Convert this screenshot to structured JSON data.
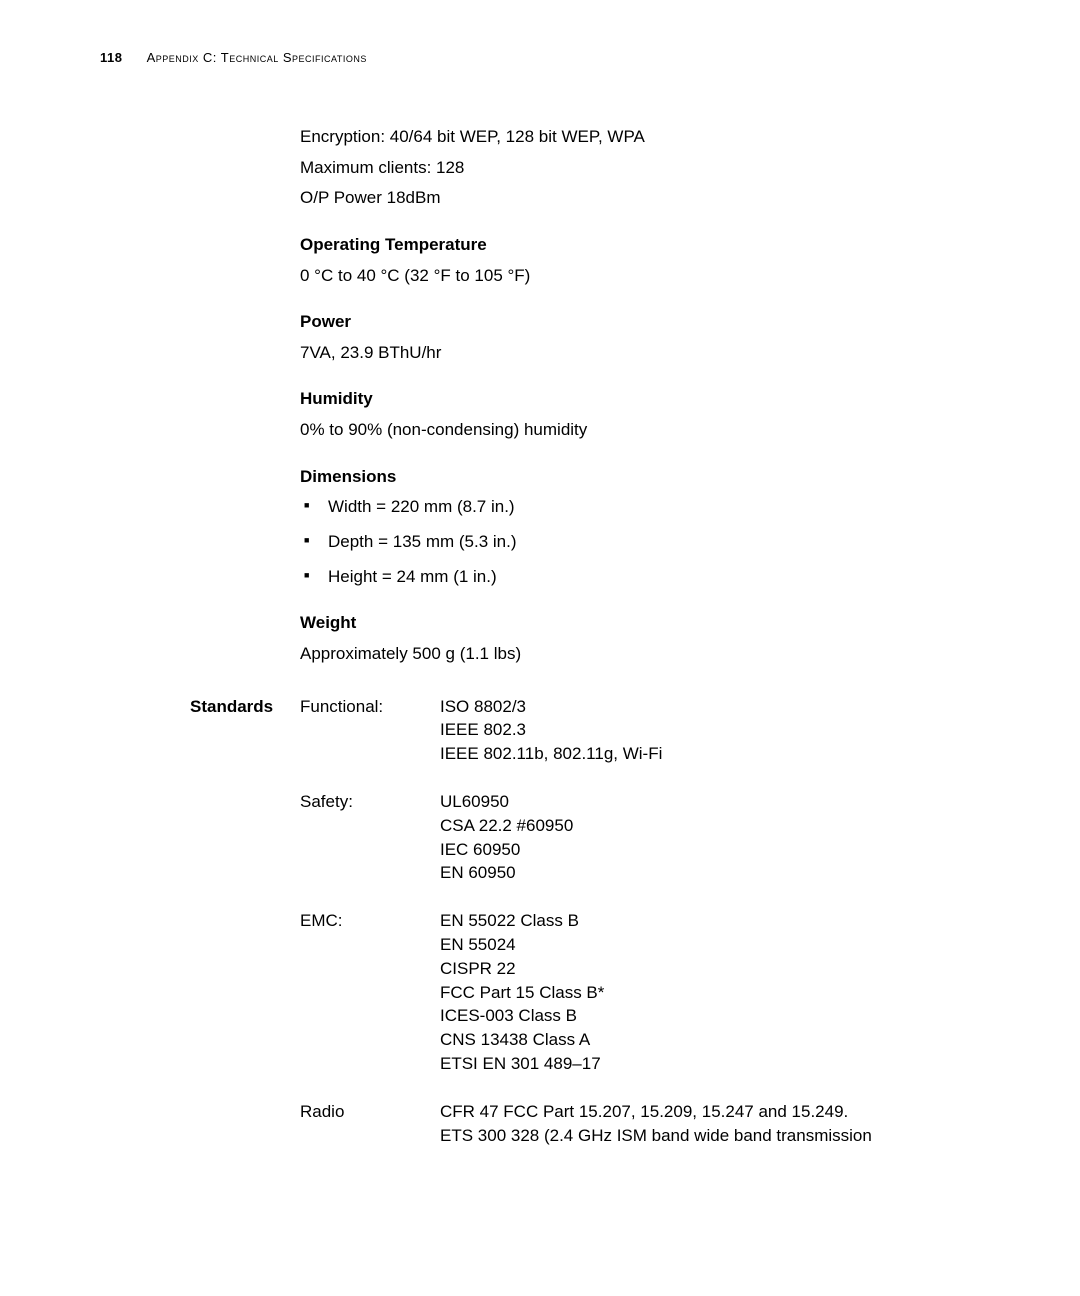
{
  "colors": {
    "text": "#000000",
    "background": "#ffffff"
  },
  "typography": {
    "body_fontsize_pt": 13,
    "header_fontsize_pt": 10,
    "bold_weight": "bold"
  },
  "header": {
    "page_number": "118",
    "title_appendix": "Appendix C: T",
    "title_rest": "echnical Specifications"
  },
  "intro": {
    "line1": "Encryption: 40/64 bit WEP, 128 bit WEP, WPA",
    "line2": "Maximum clients: 128",
    "line3": "O/P Power 18dBm"
  },
  "sections": {
    "operating_temp": {
      "title": "Operating Temperature",
      "body": "0 °C to 40 °C (32 °F to 105 °F)"
    },
    "power": {
      "title": "Power",
      "body": "7VA, 23.9 BThU/hr"
    },
    "humidity": {
      "title": "Humidity",
      "body": "0% to 90% (non-condensing) humidity"
    },
    "dimensions": {
      "title": "Dimensions",
      "items": {
        "0": "Width = 220 mm (8.7 in.)",
        "1": "Depth = 135 mm (5.3 in.)",
        "2": "Height = 24 mm (1 in.)"
      }
    },
    "weight": {
      "title": "Weight",
      "body": "Approximately 500 g (1.1 lbs)"
    }
  },
  "standards": {
    "side_label": "Standards",
    "rows": {
      "functional": {
        "label": "Functional:",
        "value": "ISO 8802/3\nIEEE 802.3\nIEEE 802.11b, 802.11g, Wi-Fi"
      },
      "safety": {
        "label": "Safety:",
        "value": "UL60950\nCSA 22.2 #60950\nIEC 60950\nEN 60950"
      },
      "emc": {
        "label": "EMC:",
        "value": "EN 55022 Class B\nEN 55024\nCISPR 22\nFCC Part 15 Class B*\nICES-003 Class B\nCNS 13438 Class A\nETSI EN 301 489–17"
      },
      "radio": {
        "label": "Radio",
        "value": "CFR 47 FCC Part 15.207, 15.209, 15.247 and 15.249.\nETS 300 328 (2.4 GHz ISM band wide band transmission"
      }
    }
  }
}
